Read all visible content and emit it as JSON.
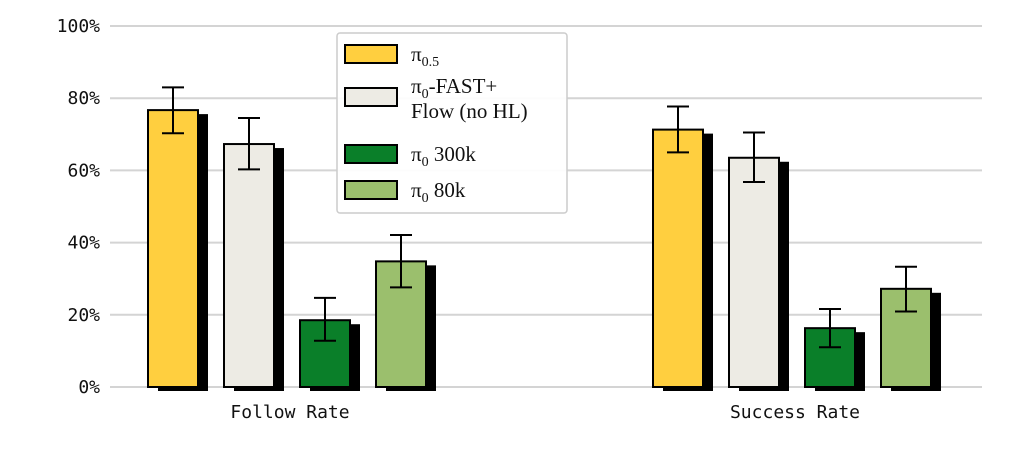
{
  "chart_data": {
    "type": "bar",
    "categories": [
      "Follow Rate",
      "Success Rate"
    ],
    "ylim": [
      0,
      100
    ],
    "yticks": [
      0,
      20,
      40,
      60,
      80,
      100
    ],
    "ytick_suffix": "%",
    "grid": true,
    "legend_position": "top-center",
    "series": [
      {
        "name": "π0.5",
        "label_main": "π",
        "label_sub": "0.5",
        "label_rest": "",
        "label_line2": "",
        "color": "#FFCF3F",
        "values": [
          76.7,
          71.3
        ],
        "err_low": [
          70.3,
          65.0
        ],
        "err_high": [
          83.0,
          77.7
        ]
      },
      {
        "name": "π0-FAST+ Flow (no HL)",
        "label_main": "π",
        "label_sub": "0",
        "label_rest": "-FAST+",
        "label_line2": "Flow (no HL)",
        "color": "#EDEBE4",
        "values": [
          67.3,
          63.5
        ],
        "err_low": [
          60.3,
          56.8
        ],
        "err_high": [
          74.5,
          70.5
        ]
      },
      {
        "name": "π0 300k",
        "label_main": "π",
        "label_sub": "0",
        "label_rest": " 300k",
        "label_line2": "",
        "color": "#0A7F29",
        "values": [
          18.5,
          16.3
        ],
        "err_low": [
          12.8,
          11.0
        ],
        "err_high": [
          24.7,
          21.6
        ]
      },
      {
        "name": "π0 80k",
        "label_main": "π",
        "label_sub": "0",
        "label_rest": " 80k",
        "label_line2": "",
        "color": "#9BBF6D",
        "values": [
          34.8,
          27.2
        ],
        "err_low": [
          27.6,
          20.9
        ],
        "err_high": [
          42.1,
          33.3
        ]
      }
    ]
  }
}
